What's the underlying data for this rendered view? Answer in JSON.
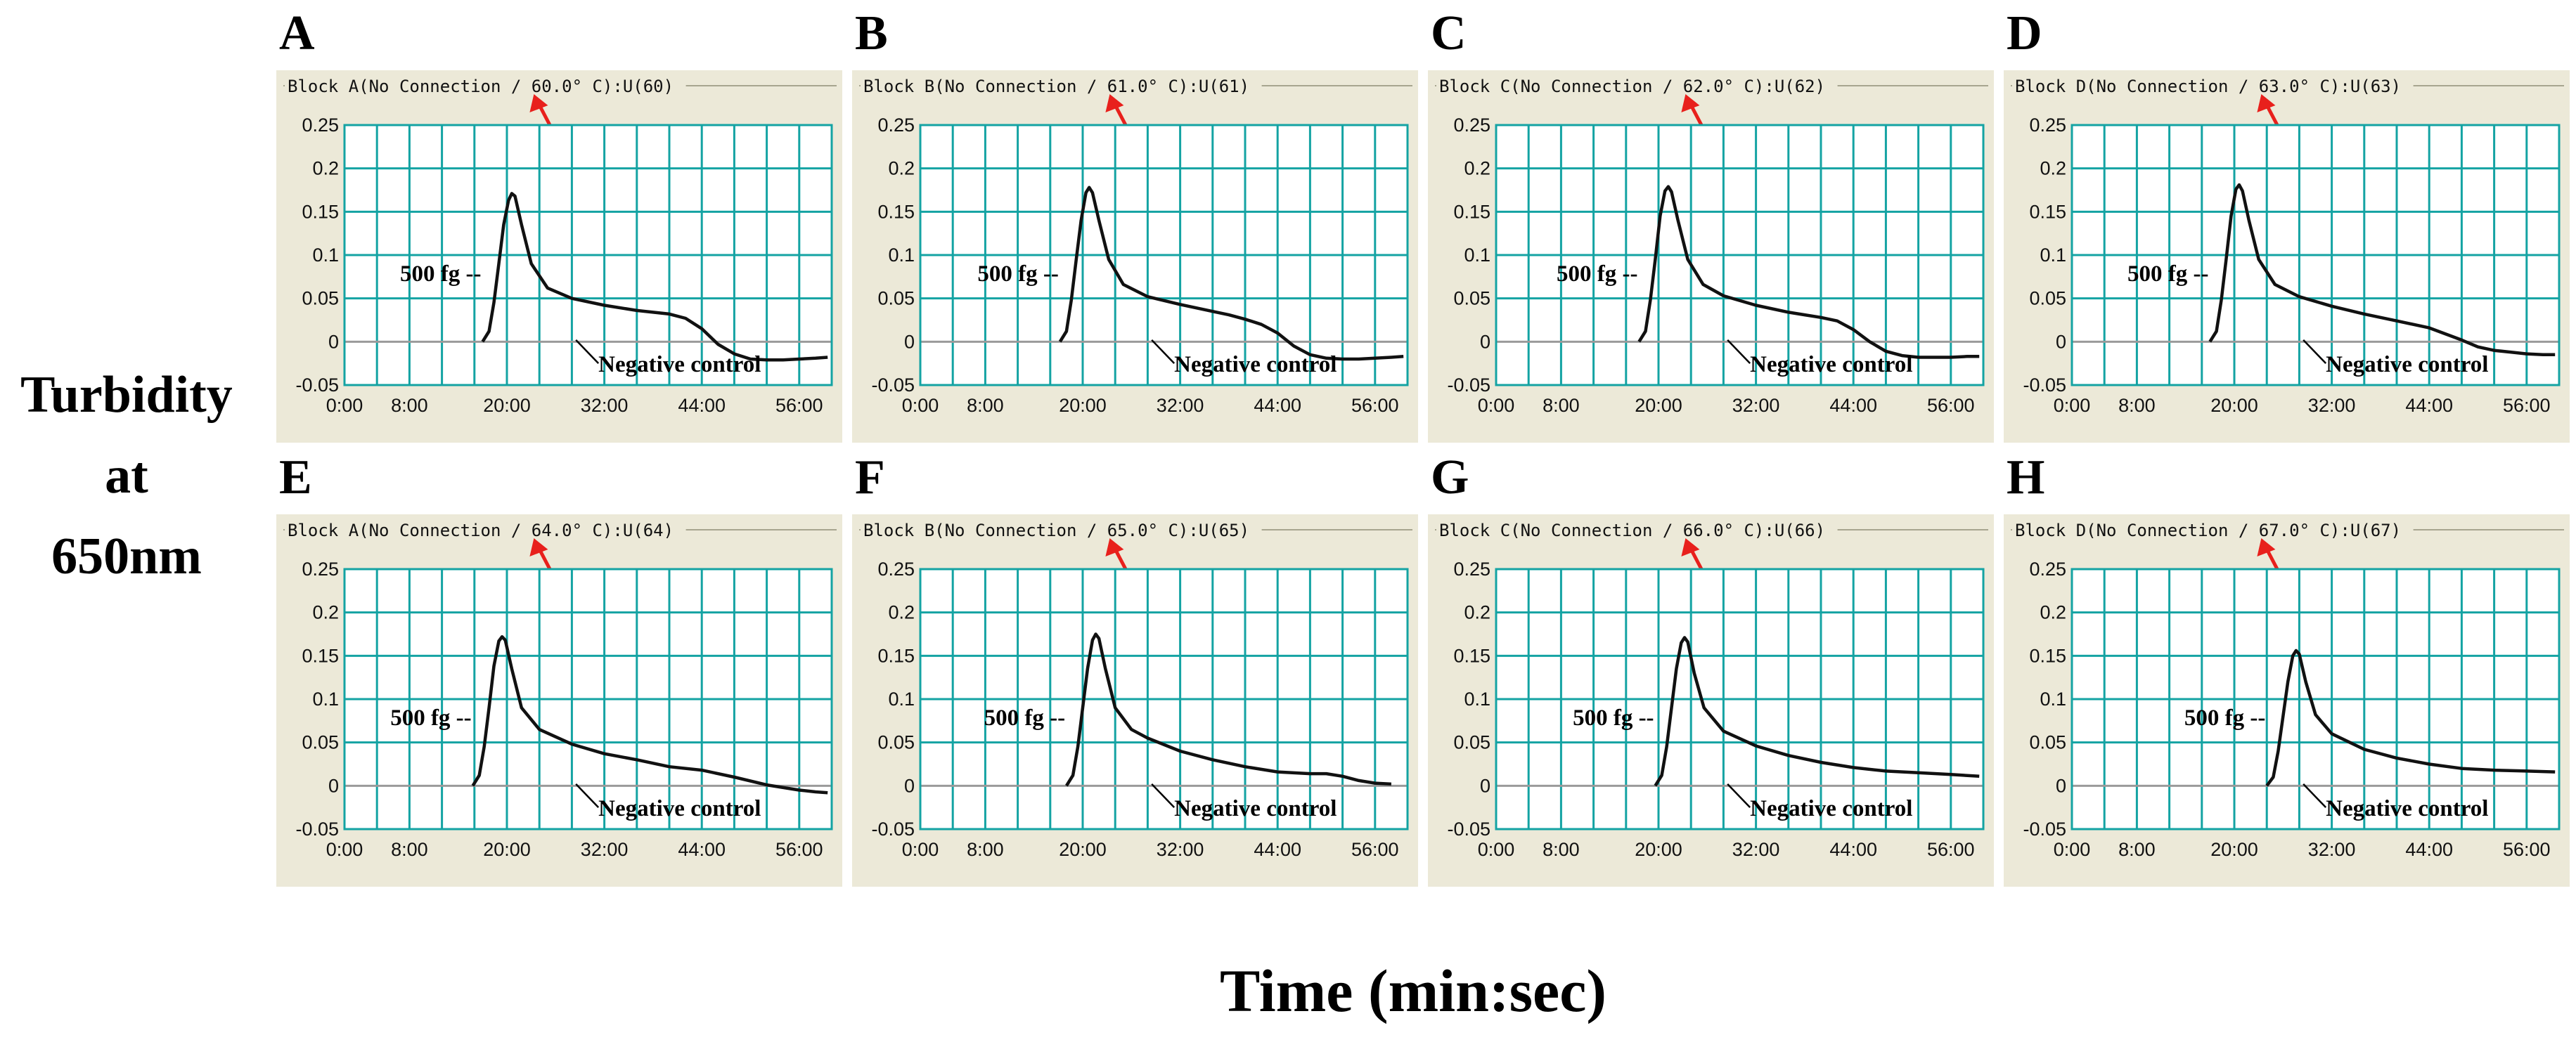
{
  "figure": {
    "y_label_lines": [
      "Turbidity",
      "at",
      "650nm"
    ],
    "x_label": "Time (min:sec)",
    "colors": {
      "panel_bg": "#ece9d8",
      "plot_bg": "#ffffff",
      "grid": "#14a3a3",
      "curve": "#111111",
      "arrow": "#e8201c",
      "frame_line": "#a7a58f"
    }
  },
  "chart_data": [
    {
      "type": "line",
      "letter": "A",
      "title": "Block A(No Connection / 60.0° C):U(60)",
      "ylim": [
        -0.05,
        0.25
      ],
      "xlim": [
        0,
        60
      ],
      "grid": true,
      "yticks": [
        "0.25",
        "0.2",
        "0.15",
        "0.1",
        "0.05",
        "0",
        "-0.05"
      ],
      "xticks": [
        "0:00",
        "8:00",
        "20:00",
        "32:00",
        "44:00",
        "56:00"
      ],
      "sample_label": "500 fg",
      "control_label": "Negative control",
      "series": [
        {
          "name": "500 fg",
          "x": [
            17.0,
            17.8,
            18.4,
            19.0,
            19.6,
            20.2,
            20.6,
            21.0,
            21.8,
            23.0,
            25.0,
            28.0,
            32.0,
            36.0,
            38.0,
            40.0,
            42.0,
            44.0,
            46.0,
            48.0,
            50.0,
            52.0,
            54.0,
            56.0,
            58.0,
            59.5
          ],
          "y": [
            0.0,
            0.012,
            0.045,
            0.09,
            0.135,
            0.163,
            0.171,
            0.168,
            0.135,
            0.09,
            0.062,
            0.05,
            0.042,
            0.036,
            0.034,
            0.032,
            0.027,
            0.015,
            -0.003,
            -0.014,
            -0.02,
            -0.021,
            -0.021,
            -0.02,
            -0.019,
            -0.018
          ]
        }
      ]
    },
    {
      "type": "line",
      "letter": "B",
      "title": "Block B(No Connection / 61.0° C):U(61)",
      "ylim": [
        -0.05,
        0.25
      ],
      "xlim": [
        0,
        60
      ],
      "grid": true,
      "yticks": [
        "0.25",
        "0.2",
        "0.15",
        "0.1",
        "0.05",
        "0",
        "-0.05"
      ],
      "xticks": [
        "0:00",
        "8:00",
        "20:00",
        "32:00",
        "44:00",
        "56:00"
      ],
      "sample_label": "500 fg",
      "control_label": "Negative control",
      "series": [
        {
          "name": "500 fg",
          "x": [
            17.2,
            18.0,
            18.6,
            19.2,
            19.8,
            20.4,
            20.8,
            21.2,
            22.0,
            23.2,
            25.0,
            28.0,
            32.0,
            36.0,
            38.0,
            40.0,
            42.0,
            44.0,
            46.0,
            48.0,
            50.0,
            52.0,
            54.0,
            56.0,
            58.0,
            59.5
          ],
          "y": [
            0.0,
            0.012,
            0.048,
            0.095,
            0.14,
            0.172,
            0.178,
            0.172,
            0.14,
            0.095,
            0.066,
            0.052,
            0.043,
            0.035,
            0.031,
            0.026,
            0.02,
            0.01,
            -0.005,
            -0.015,
            -0.019,
            -0.02,
            -0.02,
            -0.019,
            -0.018,
            -0.017
          ]
        }
      ]
    },
    {
      "type": "line",
      "letter": "C",
      "title": "Block C(No Connection / 62.0° C):U(62)",
      "ylim": [
        -0.05,
        0.25
      ],
      "xlim": [
        0,
        60
      ],
      "grid": true,
      "yticks": [
        "0.25",
        "0.2",
        "0.15",
        "0.1",
        "0.05",
        "0",
        "-0.05"
      ],
      "xticks": [
        "0:00",
        "8:00",
        "20:00",
        "32:00",
        "44:00",
        "56:00"
      ],
      "sample_label": "500 fg",
      "control_label": "Negative control",
      "series": [
        {
          "name": "500 fg",
          "x": [
            17.6,
            18.4,
            19.0,
            19.6,
            20.2,
            20.8,
            21.2,
            21.6,
            22.4,
            23.6,
            25.5,
            28.0,
            32.0,
            36.0,
            38.0,
            40.0,
            42.0,
            44.0,
            46.0,
            48.0,
            50.0,
            52.0,
            54.0,
            56.0,
            58.0,
            59.5
          ],
          "y": [
            0.0,
            0.012,
            0.048,
            0.095,
            0.145,
            0.174,
            0.179,
            0.173,
            0.14,
            0.095,
            0.066,
            0.053,
            0.042,
            0.034,
            0.031,
            0.028,
            0.024,
            0.014,
            0.0,
            -0.011,
            -0.016,
            -0.018,
            -0.018,
            -0.018,
            -0.017,
            -0.017
          ]
        }
      ]
    },
    {
      "type": "line",
      "letter": "D",
      "title": "Block D(No Connection / 63.0° C):U(63)",
      "ylim": [
        -0.05,
        0.25
      ],
      "xlim": [
        0,
        60
      ],
      "grid": true,
      "yticks": [
        "0.25",
        "0.2",
        "0.15",
        "0.1",
        "0.05",
        "0",
        "-0.05"
      ],
      "xticks": [
        "0:00",
        "8:00",
        "20:00",
        "32:00",
        "44:00",
        "56:00"
      ],
      "sample_label": "500 fg",
      "control_label": "Negative control",
      "series": [
        {
          "name": "500 fg",
          "x": [
            17.0,
            17.8,
            18.4,
            19.0,
            19.6,
            20.2,
            20.6,
            21.0,
            21.8,
            23.0,
            25.0,
            28.0,
            32.0,
            36.0,
            40.0,
            44.0,
            48.0,
            50.0,
            52.0,
            54.0,
            56.0,
            58.0,
            59.5
          ],
          "y": [
            0.0,
            0.012,
            0.048,
            0.095,
            0.145,
            0.176,
            0.181,
            0.174,
            0.14,
            0.095,
            0.066,
            0.052,
            0.041,
            0.032,
            0.024,
            0.016,
            0.002,
            -0.006,
            -0.01,
            -0.012,
            -0.014,
            -0.015,
            -0.015
          ]
        }
      ]
    },
    {
      "type": "line",
      "letter": "E",
      "title": "Block A(No Connection / 64.0° C):U(64)",
      "ylim": [
        -0.05,
        0.25
      ],
      "xlim": [
        0,
        60
      ],
      "grid": true,
      "yticks": [
        "0.25",
        "0.2",
        "0.15",
        "0.1",
        "0.05",
        "0",
        "-0.05"
      ],
      "xticks": [
        "0:00",
        "8:00",
        "20:00",
        "32:00",
        "44:00",
        "56:00"
      ],
      "sample_label": "500 fg",
      "control_label": "Negative control",
      "series": [
        {
          "name": "500 fg",
          "x": [
            15.8,
            16.6,
            17.2,
            17.8,
            18.4,
            19.0,
            19.4,
            19.8,
            20.6,
            21.8,
            24.0,
            28.0,
            32.0,
            36.0,
            40.0,
            44.0,
            48.0,
            52.0,
            56.0,
            58.0,
            59.5
          ],
          "y": [
            0.0,
            0.012,
            0.045,
            0.09,
            0.138,
            0.167,
            0.172,
            0.168,
            0.135,
            0.09,
            0.065,
            0.048,
            0.037,
            0.03,
            0.022,
            0.018,
            0.01,
            0.001,
            -0.005,
            -0.007,
            -0.008
          ]
        }
      ]
    },
    {
      "type": "line",
      "letter": "F",
      "title": "Block B(No Connection / 65.0° C):U(65)",
      "ylim": [
        -0.05,
        0.25
      ],
      "xlim": [
        0,
        60
      ],
      "grid": true,
      "yticks": [
        "0.25",
        "0.2",
        "0.15",
        "0.1",
        "0.05",
        "0",
        "-0.05"
      ],
      "xticks": [
        "0:00",
        "8:00",
        "20:00",
        "32:00",
        "44:00",
        "56:00"
      ],
      "sample_label": "500 fg",
      "control_label": "Negative control",
      "series": [
        {
          "name": "500 fg",
          "x": [
            18.0,
            18.8,
            19.4,
            20.0,
            20.6,
            21.2,
            21.6,
            22.0,
            22.8,
            24.0,
            26.0,
            28.0,
            32.0,
            36.0,
            40.0,
            44.0,
            48.0,
            50.0,
            52.0,
            54.0,
            56.0,
            58.0
          ],
          "y": [
            0.0,
            0.012,
            0.045,
            0.09,
            0.135,
            0.168,
            0.175,
            0.17,
            0.135,
            0.09,
            0.065,
            0.055,
            0.04,
            0.03,
            0.022,
            0.016,
            0.014,
            0.014,
            0.011,
            0.006,
            0.003,
            0.002
          ]
        }
      ]
    },
    {
      "type": "line",
      "letter": "G",
      "title": "Block C(No Connection / 66.0° C):U(66)",
      "ylim": [
        -0.05,
        0.25
      ],
      "xlim": [
        0,
        60
      ],
      "grid": true,
      "yticks": [
        "0.25",
        "0.2",
        "0.15",
        "0.1",
        "0.05",
        "0",
        "-0.05"
      ],
      "xticks": [
        "0:00",
        "8:00",
        "20:00",
        "32:00",
        "44:00",
        "56:00"
      ],
      "sample_label": "500 fg",
      "control_label": "Negative control",
      "series": [
        {
          "name": "500 fg",
          "x": [
            19.6,
            20.4,
            21.0,
            21.6,
            22.2,
            22.8,
            23.2,
            23.6,
            24.4,
            25.6,
            28.0,
            32.0,
            36.0,
            40.0,
            44.0,
            48.0,
            52.0,
            56.0,
            59.5
          ],
          "y": [
            0.0,
            0.012,
            0.045,
            0.09,
            0.135,
            0.165,
            0.171,
            0.166,
            0.13,
            0.09,
            0.063,
            0.046,
            0.035,
            0.027,
            0.021,
            0.017,
            0.015,
            0.013,
            0.011
          ]
        }
      ]
    },
    {
      "type": "line",
      "letter": "H",
      "title": "Block D(No Connection / 67.0° C):U(67)",
      "ylim": [
        -0.05,
        0.25
      ],
      "xlim": [
        0,
        60
      ],
      "grid": true,
      "yticks": [
        "0.25",
        "0.2",
        "0.15",
        "0.1",
        "0.05",
        "0",
        "-0.05"
      ],
      "xticks": [
        "0:00",
        "8:00",
        "20:00",
        "32:00",
        "44:00",
        "56:00"
      ],
      "sample_label": "500 fg",
      "control_label": "Negative control",
      "series": [
        {
          "name": "500 fg",
          "x": [
            24.0,
            24.8,
            25.4,
            26.0,
            26.6,
            27.2,
            27.6,
            28.0,
            28.8,
            30.0,
            32.0,
            36.0,
            40.0,
            44.0,
            48.0,
            52.0,
            56.0,
            59.5
          ],
          "y": [
            0.0,
            0.01,
            0.04,
            0.08,
            0.12,
            0.15,
            0.156,
            0.152,
            0.12,
            0.082,
            0.06,
            0.042,
            0.032,
            0.025,
            0.02,
            0.018,
            0.017,
            0.016
          ]
        }
      ]
    }
  ]
}
